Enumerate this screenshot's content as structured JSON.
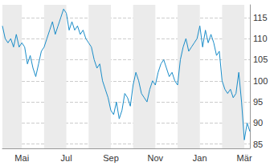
{
  "chart_data": {
    "type": "line",
    "categories": [
      null,
      null,
      null,
      null,
      null,
      null,
      null,
      "Mai",
      null,
      null,
      null,
      null,
      null,
      null,
      null,
      null,
      null,
      null,
      null,
      null,
      null,
      null,
      null,
      "Jul",
      null,
      null,
      null,
      null,
      null,
      null,
      null,
      null,
      null,
      null,
      null,
      null,
      null,
      null,
      null,
      "Sep",
      null,
      null,
      null,
      null,
      null,
      null,
      null,
      null,
      null,
      null,
      null,
      null,
      null,
      null,
      null,
      "Nov",
      null,
      null,
      null,
      null,
      null,
      null,
      null,
      null,
      null,
      null,
      null,
      null,
      null,
      null,
      null,
      "Jan",
      null,
      null,
      null,
      null,
      null,
      null,
      null,
      null,
      null,
      null,
      null,
      null,
      null,
      null,
      null,
      "Mär",
      null,
      null
    ],
    "values": [
      113,
      110,
      109,
      110,
      108,
      111,
      108,
      109,
      108,
      104,
      106,
      103,
      101,
      104,
      107,
      108,
      110,
      112,
      114,
      111,
      113,
      115,
      117,
      116,
      112,
      114,
      112,
      113,
      111,
      112,
      110,
      109,
      108,
      105,
      103,
      104,
      100,
      98,
      96,
      93,
      92,
      95,
      91,
      93,
      97,
      96,
      94,
      99,
      102,
      100,
      97,
      96,
      95,
      98,
      100,
      99,
      102,
      104,
      105,
      103,
      101,
      102,
      100,
      99,
      105,
      108,
      110,
      107,
      108,
      109,
      110,
      113,
      108,
      112,
      109,
      111,
      109,
      106,
      107,
      100,
      98,
      97,
      98,
      96,
      97,
      102,
      95,
      86,
      90,
      88
    ],
    "color": "#1a8dc9",
    "ylim": [
      84,
      118
    ],
    "yticks": [
      85,
      90,
      95,
      100,
      105,
      110,
      115
    ],
    "grid": true
  }
}
